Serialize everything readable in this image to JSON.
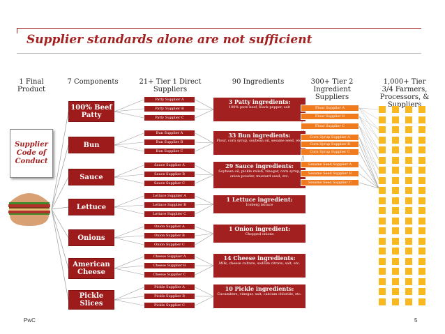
{
  "title": "Supplier standards alone are not sufficient",
  "headers": {
    "final_product": "1 Final Product",
    "components": "7 Components",
    "tier1": "21+ Tier 1 Direct Suppliers",
    "ingredients": "90 Ingredients",
    "tier2": "300+ Tier 2 Ingredient Suppliers",
    "tier34": "1,000+ Tier 3/4 Farmers, Processors, & Suppliers"
  },
  "code_of_conduct": "Supplier Code of Conduct",
  "components": [
    "100% Beef Patty",
    "Bun",
    "Sauce",
    "Lettuce",
    "Onions",
    "American Cheese",
    "Pickle Slices"
  ],
  "tier1_suppliers": [
    [
      "Patty Supplier A",
      "Patty Supplier B",
      "Patty Supplier C"
    ],
    [
      "Bun Supplier A",
      "Bun Supplier B",
      "Bun Supplier C"
    ],
    [
      "Sauce Supplier A",
      "Sauce Supplier B",
      "Sauce Supplier C"
    ],
    [
      "Lettuce Supplier  A",
      "Lettuce Supplier  B",
      "Lettuce Supplier C"
    ],
    [
      "Onion Supplier A",
      "Onion Supplier B",
      "Onion Supplier C"
    ],
    [
      "Cheese Supplier A",
      "Cheese Supplier B",
      "Cheese Supplier C"
    ],
    [
      "Pickle Supplier A",
      "Pickle Supplier B",
      "Pickle Supplier C"
    ]
  ],
  "ingredients": [
    {
      "heading": "3 Patty ingredients:",
      "detail": "100% pure beef, black pepper, salt"
    },
    {
      "heading": "33 Bun ingredients:",
      "detail": "Flour, corn syrup, soybean oil, sesame seed, etc."
    },
    {
      "heading": "29 Sauce ingredients:",
      "detail": "Soybean oil, pickle relish, vinegar, corn syrup, onion powder, mustard seed, etc."
    },
    {
      "heading": "1 Lettuce ingredient:",
      "detail": "Iceberg lettuce"
    },
    {
      "heading": "1 Onion ingredient:",
      "detail": "Chopped onions"
    },
    {
      "heading": "14 Cheese ingredients:",
      "detail": "Milk, cheese culture, sodium citrate, salt, etc."
    },
    {
      "heading": "10 Pickle ingredients:",
      "detail": "Cucumbers, vinegar, salt, calcium chloride, etc."
    }
  ],
  "tier2_suppliers": [
    "Flour Supplier A",
    "Flour Supplier B",
    "Flour Supplier C",
    "Corn Syrup Supplier A",
    "Corn Syrup Supplier B",
    "Corn Syrup Supplier C",
    "Sesame Seed Supplier A",
    "Sesame Seed Supplier B",
    "Sesame Seed Supplier C"
  ],
  "footer": {
    "brand": "PwC",
    "page": "5"
  },
  "colors": {
    "red": "#9e1b1b",
    "orange": "#f07a1e",
    "yellow": "#f8b820"
  }
}
